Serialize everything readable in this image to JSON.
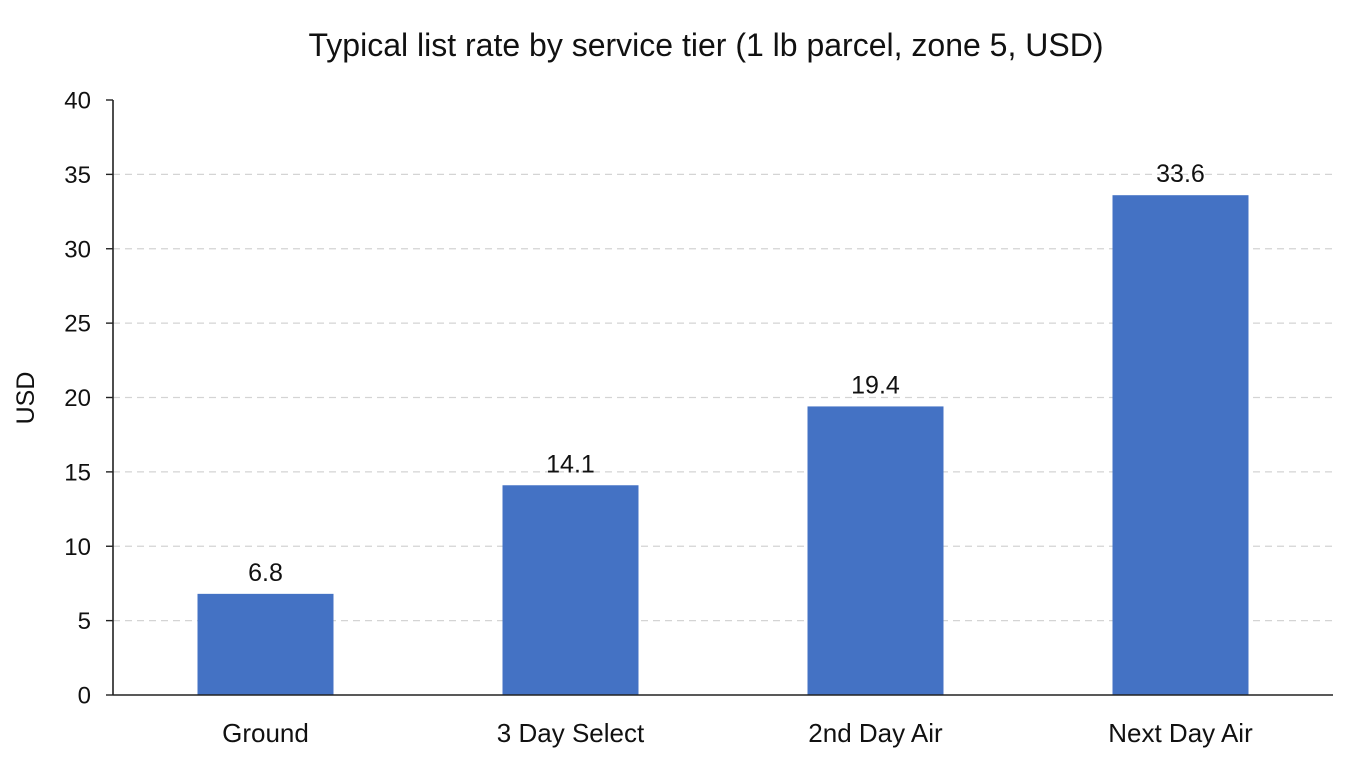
{
  "chart_data": {
    "type": "bar",
    "title": "Typical list rate by service tier (1 lb parcel, zone 5, USD)",
    "xlabel": "",
    "ylabel": "USD",
    "categories": [
      "Ground",
      "3 Day Select",
      "2nd Day Air",
      "Next Day Air"
    ],
    "values": [
      6.8,
      14.1,
      19.4,
      33.6
    ],
    "value_labels": [
      "6.8",
      "14.1",
      "19.4",
      "33.6"
    ],
    "ylim": [
      0,
      40
    ],
    "yticks": [
      0,
      5,
      10,
      15,
      20,
      25,
      30,
      35,
      40
    ],
    "grid": "horizontal dashed",
    "legend": "none",
    "bar_color": "#4472c4"
  }
}
